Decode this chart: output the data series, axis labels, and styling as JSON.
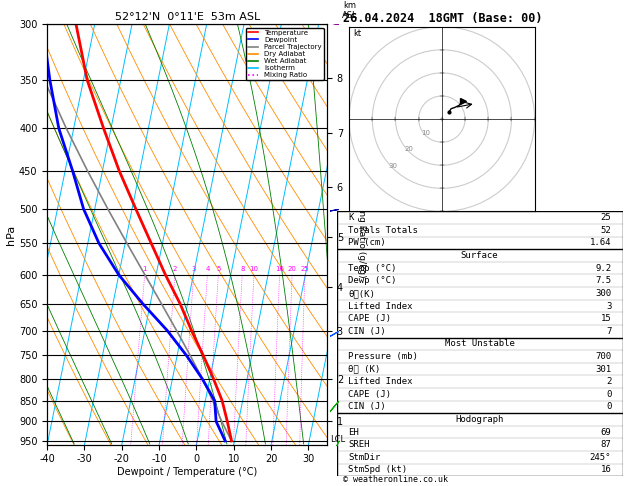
{
  "title_left": "52°12'N  0°11'E  53m ASL",
  "title_right": "26.04.2024  18GMT (Base: 00)",
  "xlabel": "Dewpoint / Temperature (°C)",
  "ylabel_left": "hPa",
  "x_min": -40,
  "x_max": 35,
  "pressure_levels": [
    300,
    350,
    400,
    450,
    500,
    550,
    600,
    650,
    700,
    750,
    800,
    850,
    900,
    950
  ],
  "pressure_major": [
    300,
    350,
    400,
    450,
    500,
    550,
    600,
    650,
    700,
    750,
    800,
    850,
    900,
    950
  ],
  "temp_profile_p": [
    950,
    900,
    850,
    800,
    750,
    700,
    650,
    600,
    550,
    500,
    450,
    400,
    350,
    300
  ],
  "temp_profile_t": [
    9.2,
    7.0,
    4.5,
    1.0,
    -3.0,
    -7.5,
    -12.0,
    -17.5,
    -23.0,
    -29.0,
    -35.5,
    -42.0,
    -49.0,
    -55.0
  ],
  "dewp_profile_p": [
    950,
    900,
    850,
    800,
    750,
    700,
    650,
    600,
    550,
    500,
    450,
    400,
    350,
    300
  ],
  "dewp_profile_t": [
    7.5,
    4.0,
    2.5,
    -2.0,
    -7.5,
    -14.0,
    -22.0,
    -30.0,
    -37.0,
    -43.0,
    -48.0,
    -54.0,
    -59.0,
    -64.0
  ],
  "parcel_p": [
    950,
    900,
    850,
    800,
    750,
    700,
    650,
    600,
    550,
    500,
    450,
    400,
    350,
    300
  ],
  "parcel_t": [
    9.2,
    5.5,
    2.0,
    -2.0,
    -6.5,
    -11.5,
    -17.0,
    -23.0,
    -29.5,
    -36.5,
    -44.0,
    -52.0,
    -60.5,
    -69.0
  ],
  "km_ticks": [
    1,
    2,
    3,
    4,
    5,
    6,
    7,
    8
  ],
  "km_pressures": [
    900,
    800,
    700,
    620,
    540,
    470,
    405,
    348
  ],
  "skew_factor": 45,
  "temp_color": "#ff0000",
  "dewp_color": "#0000ff",
  "parcel_color": "#808080",
  "dry_adiabat_color": "#ff8c00",
  "wet_adiabat_color": "#008000",
  "isotherm_color": "#00bfff",
  "mixing_ratio_color": "#ff00ff",
  "bg_color": "#ffffff",
  "legend_entries": [
    "Temperature",
    "Dewpoint",
    "Parcel Trajectory",
    "Dry Adiabat",
    "Wet Adiabat",
    "Isotherm",
    "Mixing Ratio"
  ],
  "legend_colors": [
    "#ff0000",
    "#0000ff",
    "#808080",
    "#ff8c00",
    "#008000",
    "#00bfff",
    "#ff00ff"
  ],
  "legend_styles": [
    "-",
    "-",
    "-",
    "-",
    "-",
    "-",
    ":"
  ],
  "lcl_pressure": 940,
  "mixing_ratio_label_values": [
    1,
    2,
    3,
    4,
    5,
    8,
    10,
    16,
    20,
    25
  ],
  "wind_pressures": [
    950,
    850,
    700,
    500,
    300
  ],
  "wind_speeds": [
    10,
    15,
    20,
    25,
    35
  ],
  "wind_dirs": [
    200,
    220,
    240,
    260,
    280
  ],
  "data_table": {
    "K": "25",
    "Totals Totals": "52",
    "PW (cm)": "1.64",
    "Surface_Temp": "9.2",
    "Surface_Dewp": "7.5",
    "Surface_the": "300",
    "Surface_LI": "3",
    "Surface_CAPE": "15",
    "Surface_CIN": "7",
    "MU_Pressure": "700",
    "MU_the": "301",
    "MU_LI": "2",
    "MU_CAPE": "0",
    "MU_CIN": "0",
    "Hodo_EH": "69",
    "Hodo_SREH": "87",
    "Hodo_StmDir": "245°",
    "Hodo_StmSpd": "16"
  }
}
